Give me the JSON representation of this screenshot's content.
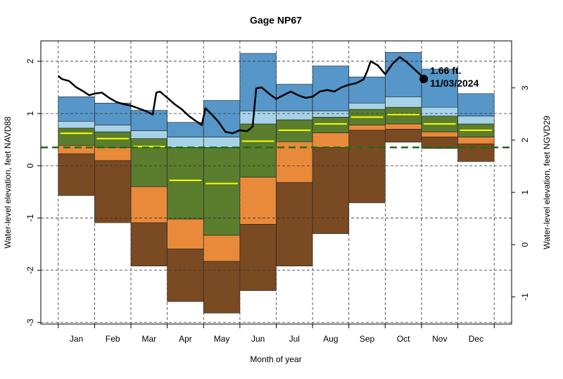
{
  "chart_data": {
    "type": "band",
    "title": "Gage NP67",
    "x_label": "Month of year",
    "y_label": "Water-level elevation, feet NAVD88",
    "y2_label": "Water-level elevation, feet NGVD29",
    "categories": [
      "Jan",
      "Feb",
      "Mar",
      "Apr",
      "May",
      "Jun",
      "Jul",
      "Aug",
      "Sep",
      "Oct",
      "Nov",
      "Dec"
    ],
    "xlim": [
      -0.48,
      12.48
    ],
    "xticks": [
      0,
      1,
      2,
      3,
      4,
      5,
      6,
      7,
      8,
      9,
      10,
      11,
      12
    ],
    "ylim": [
      -3.03,
      2.39
    ],
    "yticks": [
      -3,
      -2,
      -1,
      0,
      1,
      2
    ],
    "y2lim": [
      -1.52,
      3.9
    ],
    "y2ticks": [
      -1,
      0,
      1,
      2,
      3
    ],
    "grid": true,
    "levels": [
      {
        "values": [
          -0.57,
          -1.09,
          -1.92,
          -2.6,
          -2.82,
          -2.39,
          -1.92,
          -1.3,
          -0.71,
          0.45,
          0.33,
          0.08
        ]
      },
      {
        "color": "#7a4a23",
        "values": [
          0.23,
          0.1,
          -1.09,
          -1.59,
          -1.83,
          -1.12,
          -0.32,
          0.35,
          0.68,
          0.7,
          0.55,
          0.42
        ]
      },
      {
        "color": "#e98a3b",
        "values": [
          0.39,
          0.35,
          -0.4,
          -1.02,
          -1.33,
          -0.22,
          0.46,
          0.63,
          0.78,
          0.8,
          0.65,
          0.55
        ]
      },
      {
        "color": "#5a7d2e",
        "values": [
          0.72,
          0.65,
          0.52,
          0.35,
          0.35,
          0.8,
          0.88,
          0.93,
          1.08,
          1.12,
          0.95,
          0.8
        ]
      },
      {
        "color": "#a6d3e8",
        "values": [
          0.85,
          0.78,
          0.67,
          0.55,
          0.55,
          1.05,
          1.05,
          1.05,
          1.2,
          1.32,
          1.12,
          0.95
        ]
      },
      {
        "color": "#5696c8",
        "values": [
          1.32,
          1.2,
          1.06,
          0.83,
          1.25,
          2.15,
          1.56,
          1.91,
          1.7,
          2.17,
          1.85,
          1.38
        ]
      }
    ],
    "median": {
      "color": "#ffff00",
      "values": [
        0.62,
        0.52,
        0.37,
        -0.28,
        -0.34,
        0.47,
        0.68,
        0.8,
        0.93,
        0.98,
        0.8,
        0.68
      ]
    },
    "line": {
      "color": "#000000",
      "x": [
        0,
        0.1,
        0.3,
        0.5,
        0.7,
        0.85,
        1.0,
        1.2,
        1.4,
        1.6,
        1.8,
        2.0,
        2.2,
        2.4,
        2.6,
        2.7,
        2.8,
        3.0,
        3.2,
        3.4,
        3.6,
        3.8,
        3.95,
        4.05,
        4.2,
        4.4,
        4.6,
        4.8,
        5.0,
        5.2,
        5.35,
        5.45,
        5.6,
        5.8,
        6.0,
        6.2,
        6.4,
        6.6,
        6.8,
        7.0,
        7.2,
        7.4,
        7.6,
        7.8,
        8.0,
        8.2,
        8.4,
        8.5,
        8.6,
        8.8,
        9.0,
        9.2,
        9.4,
        9.6,
        9.8,
        10.0,
        10.06
      ],
      "values": [
        1.72,
        1.66,
        1.62,
        1.5,
        1.42,
        1.35,
        1.38,
        1.4,
        1.3,
        1.22,
        1.18,
        1.15,
        1.1,
        1.05,
        0.98,
        1.4,
        1.42,
        1.3,
        1.18,
        1.08,
        0.95,
        0.85,
        0.78,
        1.1,
        1.0,
        0.85,
        0.65,
        0.62,
        0.68,
        0.66,
        0.75,
        1.48,
        1.5,
        1.38,
        1.28,
        1.35,
        1.42,
        1.35,
        1.3,
        1.32,
        1.42,
        1.45,
        1.42,
        1.5,
        1.55,
        1.58,
        1.65,
        1.8,
        2.0,
        1.92,
        1.75,
        1.95,
        2.08,
        1.98,
        1.85,
        1.72,
        1.66
      ]
    },
    "reference_line": {
      "value": 0.35,
      "color": "#1e6e12"
    },
    "annotation": {
      "value_text": "1.66 ft.",
      "date": "11/03/2024"
    }
  }
}
